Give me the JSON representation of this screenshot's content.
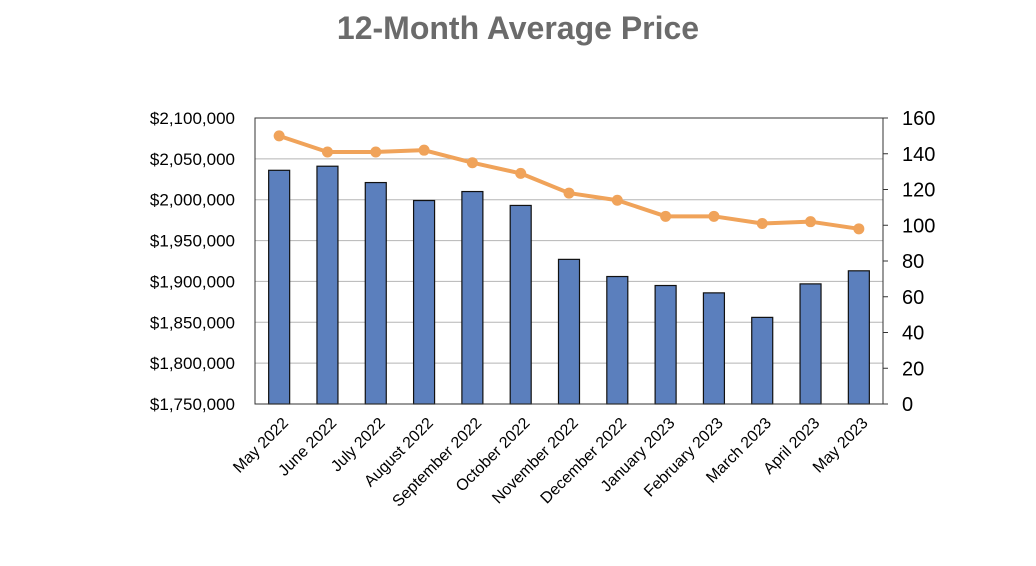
{
  "chart_data": {
    "type": "bar",
    "title": "12-Month Average Price",
    "categories": [
      "May 2022",
      "June 2022",
      "July 2022",
      "August 2022",
      "September 2022",
      "October 2022",
      "November 2022",
      "December 2022",
      "January 2023",
      "February 2023",
      "March 2023",
      "April 2023",
      "May 2023"
    ],
    "series": [
      {
        "type": "bar",
        "axis": "left",
        "color": "#5b7fbd",
        "values": [
          2036000,
          2041000,
          2021000,
          1999000,
          2010000,
          1993000,
          1927000,
          1906000,
          1895000,
          1886000,
          1856000,
          1897000,
          1913000
        ]
      },
      {
        "type": "line",
        "axis": "right",
        "color": "#f0a35a",
        "values": [
          150,
          141,
          141,
          142,
          135,
          129,
          118,
          114,
          105,
          105,
          101,
          102,
          98
        ]
      }
    ],
    "y_left": {
      "ylim": [
        1750000,
        2100000
      ],
      "ticks": [
        1750000,
        1800000,
        1850000,
        1900000,
        1950000,
        2000000,
        2050000,
        2100000
      ],
      "tick_labels": [
        "$1,750,000",
        "$1,800,000",
        "$1,850,000",
        "$1,900,000",
        "$1,950,000",
        "$2,000,000",
        "$2,050,000",
        "$2,100,000"
      ]
    },
    "y_right": {
      "ylim": [
        0,
        160
      ],
      "ticks": [
        0,
        20,
        40,
        60,
        80,
        100,
        120,
        140,
        160
      ],
      "tick_labels": [
        "0",
        "20",
        "40",
        "60",
        "80",
        "100",
        "120",
        "140",
        "160"
      ]
    },
    "xlabel": "",
    "ylabel": "",
    "grid": true,
    "legend": "none"
  }
}
